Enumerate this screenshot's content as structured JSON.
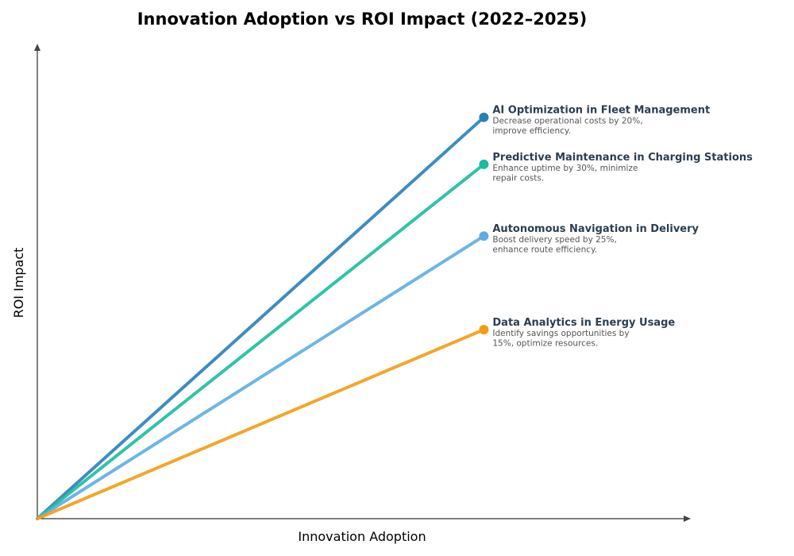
{
  "chart_data": {
    "type": "line",
    "title": "Innovation Adoption vs ROI Impact (2022–2025)",
    "xlabel": "Innovation Adoption",
    "ylabel": "ROI Impact",
    "xlim": [
      0,
      1.2
    ],
    "ylim": [
      0,
      1.0
    ],
    "grid": false,
    "axis_ticks": false,
    "series": [
      {
        "name": "AI Optimization in Fleet Management",
        "description": [
          "Decrease operational costs by 20%,",
          "improve efficiency."
        ],
        "x": [
          0,
          0.82
        ],
        "y": [
          0,
          0.845
        ],
        "color": "#2980b9"
      },
      {
        "name": "Predictive Maintenance in Charging Stations",
        "description": [
          "Enhance uptime by 30%, minimize",
          "repair costs."
        ],
        "x": [
          0,
          0.82
        ],
        "y": [
          0,
          0.746
        ],
        "color": "#1abc9c"
      },
      {
        "name": "Autonomous Navigation in Delivery",
        "description": [
          "Boost delivery speed by 25%,",
          "enhance route efficiency."
        ],
        "x": [
          0,
          0.82
        ],
        "y": [
          0,
          0.595
        ],
        "color": "#5dade2"
      },
      {
        "name": "Data Analytics in Energy Usage",
        "description": [
          "Identify savings opportunities by",
          "15%, optimize resources."
        ],
        "x": [
          0,
          0.82
        ],
        "y": [
          0,
          0.398
        ],
        "color": "#f39c12"
      }
    ]
  }
}
